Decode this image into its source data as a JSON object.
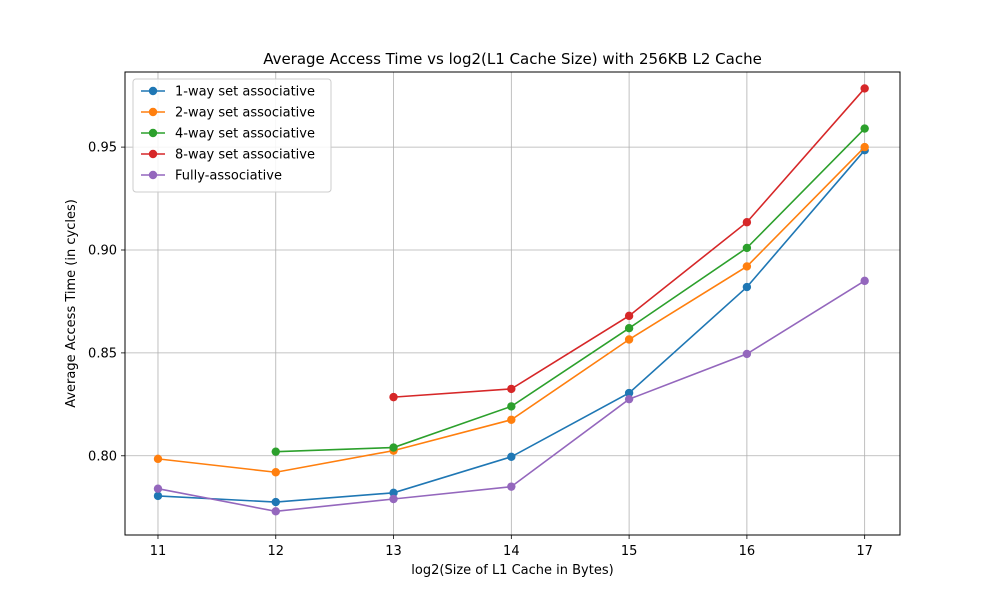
{
  "chart_data": {
    "type": "line",
    "title": "Average Access Time vs log2(L1 Cache Size) with 256KB L2 Cache",
    "xlabel": "log2(Size of L1 Cache in Bytes)",
    "ylabel": "Average Access Time (in cycles)",
    "x_ticks": [
      11,
      12,
      13,
      14,
      15,
      16,
      17
    ],
    "y_ticks": [
      0.8,
      0.85,
      0.9,
      0.95
    ],
    "xlim": [
      10.72,
      17.3
    ],
    "ylim": [
      0.7615,
      0.9865
    ],
    "grid": true,
    "legend_position": "upper-left",
    "series": [
      {
        "name": "1-way set associative",
        "color": "#1f77b4",
        "x": [
          11,
          12,
          13,
          14,
          15,
          16,
          17
        ],
        "y": [
          0.7805,
          0.7775,
          0.782,
          0.7995,
          0.8305,
          0.882,
          0.9485
        ]
      },
      {
        "name": "2-way set associative",
        "color": "#ff7f0e",
        "x": [
          11,
          12,
          13,
          14,
          15,
          16,
          17
        ],
        "y": [
          0.7985,
          0.792,
          0.8025,
          0.8175,
          0.8565,
          0.892,
          0.95
        ]
      },
      {
        "name": "4-way set associative",
        "color": "#2ca02c",
        "x": [
          12,
          13,
          14,
          15,
          16,
          17
        ],
        "y": [
          0.802,
          0.804,
          0.824,
          0.862,
          0.901,
          0.959
        ]
      },
      {
        "name": "8-way set associative",
        "color": "#d62728",
        "x": [
          13,
          14,
          15,
          16,
          17
        ],
        "y": [
          0.8285,
          0.8325,
          0.868,
          0.9135,
          0.9785
        ]
      },
      {
        "name": "Fully-associative",
        "color": "#9467bd",
        "x": [
          11,
          12,
          13,
          14,
          15,
          16,
          17
        ],
        "y": [
          0.784,
          0.773,
          0.779,
          0.785,
          0.8275,
          0.8495,
          0.885
        ]
      }
    ]
  }
}
